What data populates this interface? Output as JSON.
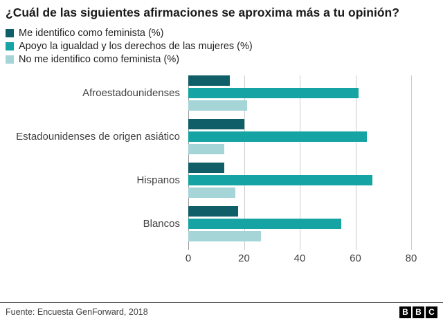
{
  "title": "¿Cuál de las siguientes afirmaciones se aproxima más a tu opinión?",
  "chart_data": {
    "type": "bar",
    "orientation": "horizontal",
    "title": "¿Cuál de las siguientes afirmaciones se aproxima más a tu opinión?",
    "categories": [
      "Afroestadounidenses",
      "Estadounidenses de origen asiático",
      "Hispanos",
      "Blancos"
    ],
    "series": [
      {
        "name": "Me identifico como feminista (%)",
        "color": "#0f5e68",
        "values": [
          15,
          20,
          13,
          18
        ]
      },
      {
        "name": "Apoyo la igualdad y los derechos de las mujeres (%)",
        "color": "#16a3a3",
        "values": [
          61,
          64,
          66,
          55
        ]
      },
      {
        "name": "No me identifico como feminista (%)",
        "color": "#a6d5d8",
        "values": [
          21,
          13,
          17,
          26
        ]
      }
    ],
    "xlim": [
      0,
      80
    ],
    "xticks": [
      0,
      20,
      40,
      60,
      80
    ],
    "grid": true,
    "legend_position": "top-left"
  },
  "footer": {
    "source": "Fuente: Encuesta GenForward, 2018",
    "logo_letters": [
      "B",
      "B",
      "C"
    ]
  }
}
